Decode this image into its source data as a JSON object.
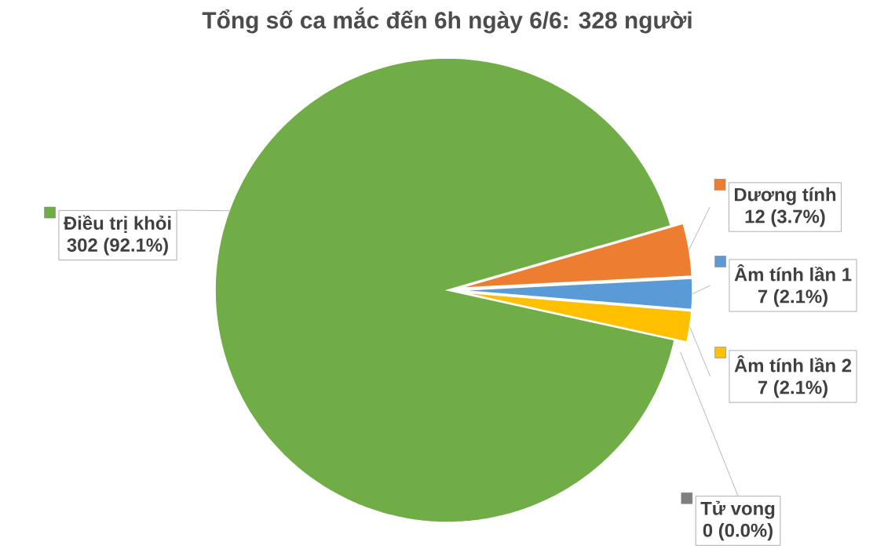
{
  "chart_data": {
    "type": "pie",
    "title": "Tổng số ca mắc đến 6h ngày 6/6: 328 người",
    "categories": [
      "Điều trị khỏi",
      "Dương tính",
      "Âm tính lần 1",
      "Âm tính lần 2",
      "Tử vong"
    ],
    "values": [
      302,
      12,
      7,
      7,
      0
    ],
    "colors": [
      "#70ad47",
      "#ed7d31",
      "#5b9bd5",
      "#ffc000",
      "#7f7f7f"
    ],
    "value_labels": [
      "302 (92.1%)",
      "12 (3.7%)",
      "7 (2.1%)",
      "7 (2.1%)",
      "0 (0.0%)"
    ],
    "legend": "right"
  }
}
